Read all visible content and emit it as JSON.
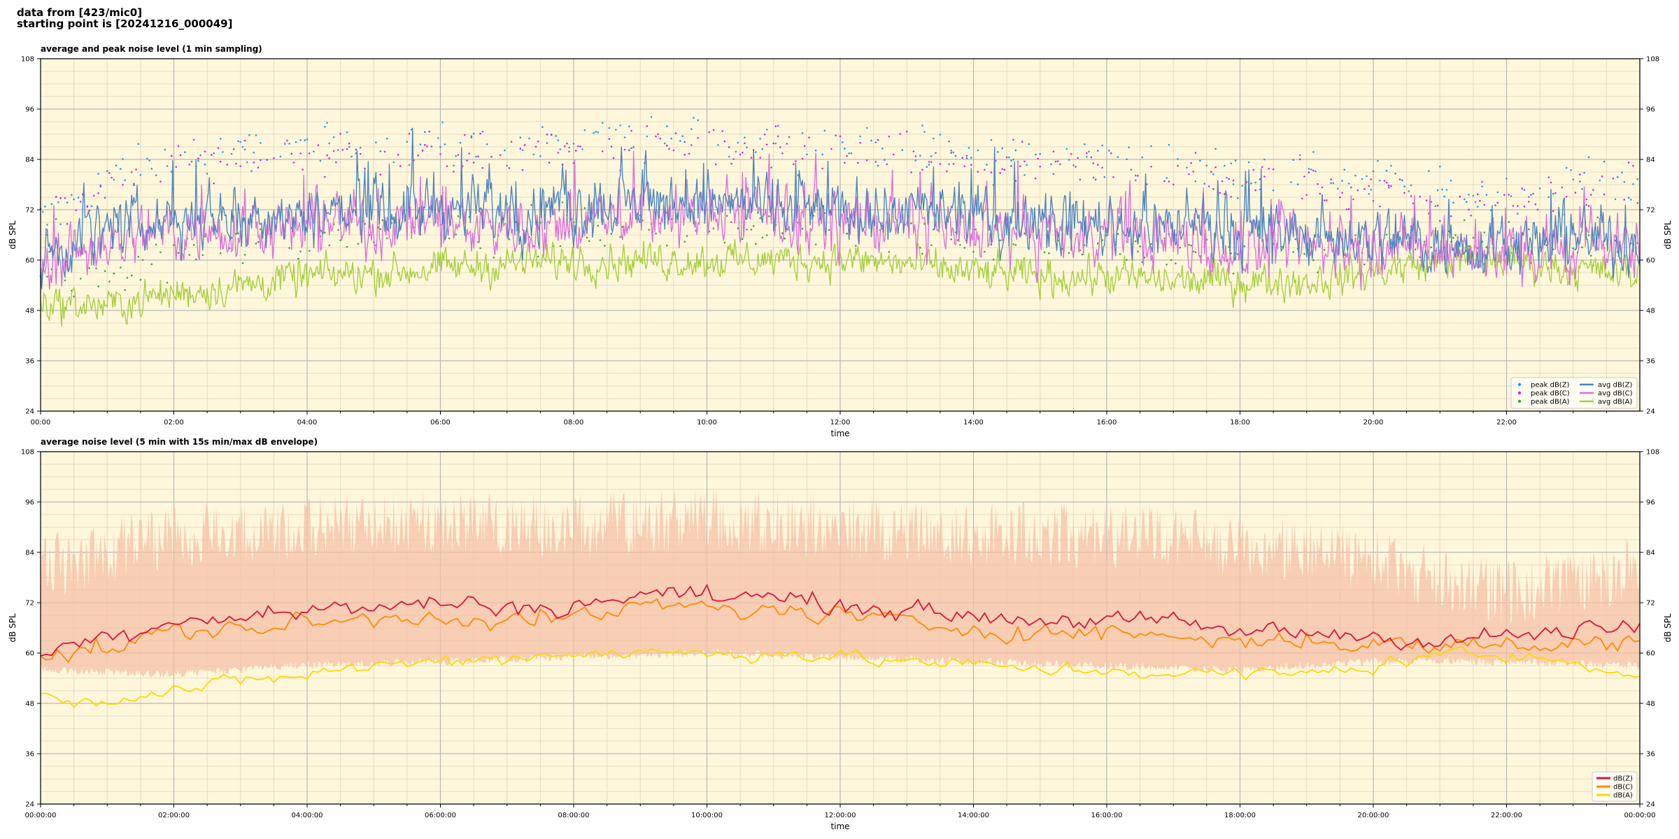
{
  "header": {
    "line1": "data from [423/mic0]",
    "line2": "starting point is [20241216_000049]"
  },
  "colors": {
    "plot_bg": "#fff7dc",
    "grid_major": "#b8b8b8",
    "grid_minor": "#e6dcc0",
    "peak_z": "#1f9fe0",
    "peak_c": "#e020e0",
    "peak_a": "#40a040",
    "avg_z": "#4f86c0",
    "avg_c": "#dd70dd",
    "avg_a": "#a6d040",
    "line_z": "#dc143c",
    "line_c": "#ff8c00",
    "line_a": "#ffd700",
    "envelope": "#f5c0a8"
  },
  "chart_data": [
    {
      "type": "line",
      "title": "average and peak noise level (1 min sampling)",
      "xlabel": "time",
      "ylabel": "dB SPL",
      "ylim": [
        24,
        108
      ],
      "yticks": [
        "24",
        "36",
        "48",
        "60",
        "72",
        "84",
        "96",
        "108"
      ],
      "xlim_hours": [
        0,
        24
      ],
      "xticks": [
        "00:00",
        "02:00",
        "04:00",
        "06:00",
        "08:00",
        "10:00",
        "12:00",
        "14:00",
        "16:00",
        "18:00",
        "20:00",
        "22:00"
      ],
      "grid": true,
      "legend": "bottom-right",
      "legend_entries": [
        "peak dB(Z)",
        "peak dB(C)",
        "peak dB(A)",
        "avg dB(Z)",
        "avg dB(C)",
        "avg dB(A)"
      ],
      "series": [
        {
          "name": "avg dB(Z)",
          "kind": "line",
          "x": [
            "00:00",
            "01:00",
            "02:00",
            "03:00",
            "04:00",
            "05:00",
            "06:00",
            "07:00",
            "08:00",
            "09:00",
            "10:00",
            "11:00",
            "12:00",
            "13:00",
            "14:00",
            "15:00",
            "16:00",
            "17:00",
            "18:00",
            "19:00",
            "20:00",
            "21:00",
            "22:00",
            "23:00",
            "24:00"
          ],
          "y": [
            62,
            67,
            70,
            71,
            71,
            72,
            72,
            71,
            72,
            74,
            74,
            73,
            72,
            71,
            70,
            69,
            69,
            68,
            66,
            66,
            65,
            64,
            64,
            65,
            65
          ]
        },
        {
          "name": "avg dB(C)",
          "kind": "line",
          "x": [
            "00:00",
            "01:00",
            "02:00",
            "03:00",
            "04:00",
            "05:00",
            "06:00",
            "07:00",
            "08:00",
            "09:00",
            "10:00",
            "11:00",
            "12:00",
            "13:00",
            "14:00",
            "15:00",
            "16:00",
            "17:00",
            "18:00",
            "19:00",
            "20:00",
            "21:00",
            "22:00",
            "23:00",
            "24:00"
          ],
          "y": [
            60,
            64,
            67,
            68,
            68,
            69,
            69,
            68,
            69,
            71,
            71,
            70,
            69,
            68,
            67,
            66,
            66,
            65,
            63,
            63,
            63,
            62,
            62,
            62,
            63
          ]
        },
        {
          "name": "avg dB(A)",
          "kind": "line",
          "x": [
            "00:00",
            "01:00",
            "02:00",
            "03:00",
            "04:00",
            "05:00",
            "06:00",
            "07:00",
            "08:00",
            "09:00",
            "10:00",
            "11:00",
            "12:00",
            "13:00",
            "14:00",
            "15:00",
            "16:00",
            "17:00",
            "18:00",
            "19:00",
            "20:00",
            "21:00",
            "22:00",
            "23:00",
            "24:00"
          ],
          "y": [
            50,
            49,
            52,
            54,
            56,
            57,
            58,
            59,
            60,
            60,
            60,
            60,
            60,
            59,
            57,
            56,
            56,
            55,
            55,
            55,
            57,
            60,
            60,
            58,
            56
          ]
        },
        {
          "name": "peak dB(Z)",
          "kind": "scatter",
          "x": [
            "00:00",
            "01:00",
            "02:00",
            "03:00",
            "04:00",
            "05:00",
            "06:00",
            "07:00",
            "08:00",
            "09:00",
            "10:00",
            "11:00",
            "12:00",
            "13:00",
            "14:00",
            "15:00",
            "16:00",
            "17:00",
            "18:00",
            "19:00",
            "20:00",
            "21:00",
            "22:00",
            "23:00",
            "24:00"
          ],
          "y": [
            70,
            80,
            84,
            86,
            87,
            88,
            88,
            87,
            88,
            89,
            89,
            88,
            87,
            86,
            85,
            84,
            84,
            83,
            81,
            81,
            79,
            76,
            76,
            78,
            80
          ]
        },
        {
          "name": "peak dB(C)",
          "kind": "scatter",
          "x": [
            "00:00",
            "01:00",
            "02:00",
            "03:00",
            "04:00",
            "05:00",
            "06:00",
            "07:00",
            "08:00",
            "09:00",
            "10:00",
            "11:00",
            "12:00",
            "13:00",
            "14:00",
            "15:00",
            "16:00",
            "17:00",
            "18:00",
            "19:00",
            "20:00",
            "21:00",
            "22:00",
            "23:00",
            "24:00"
          ],
          "y": [
            68,
            78,
            82,
            84,
            85,
            86,
            86,
            85,
            86,
            87,
            87,
            86,
            85,
            84,
            83,
            82,
            82,
            81,
            79,
            79,
            77,
            74,
            74,
            76,
            78
          ]
        },
        {
          "name": "peak dB(A)",
          "kind": "scatter",
          "x": [
            "00:00",
            "01:00",
            "02:00",
            "03:00",
            "04:00",
            "05:00",
            "06:00",
            "07:00",
            "08:00",
            "09:00",
            "10:00",
            "11:00",
            "12:00",
            "13:00",
            "14:00",
            "15:00",
            "16:00",
            "17:00",
            "18:00",
            "19:00",
            "20:00",
            "21:00",
            "22:00",
            "23:00",
            "24:00"
          ],
          "y": [
            56,
            58,
            62,
            64,
            66,
            67,
            67,
            67,
            68,
            68,
            68,
            68,
            67,
            66,
            64,
            63,
            63,
            62,
            62,
            62,
            63,
            64,
            64,
            63,
            62
          ]
        }
      ]
    },
    {
      "type": "line",
      "title": "average noise level (5 min with 15s min/max dB envelope)",
      "xlabel": "time",
      "ylabel": "dB SPL",
      "ylim": [
        24,
        108
      ],
      "yticks": [
        "24",
        "36",
        "48",
        "60",
        "72",
        "84",
        "96",
        "108"
      ],
      "xlim_hours": [
        0,
        24
      ],
      "xticks": [
        "00:00:00",
        "02:00:00",
        "04:00:00",
        "06:00:00",
        "08:00:00",
        "10:00:00",
        "12:00:00",
        "14:00:00",
        "16:00:00",
        "18:00:00",
        "20:00:00",
        "22:00:00",
        "00:00:00"
      ],
      "grid": true,
      "legend": "bottom-right",
      "legend_entries": [
        "dB(Z)",
        "dB(C)",
        "dB(A)"
      ],
      "envelope": {
        "x": [
          "00:00",
          "02:00",
          "04:00",
          "06:00",
          "08:00",
          "10:00",
          "12:00",
          "14:00",
          "16:00",
          "18:00",
          "20:00",
          "22:00",
          "24:00"
        ],
        "low": [
          57,
          56,
          58,
          59,
          60,
          61,
          60,
          59,
          58,
          57,
          59,
          59,
          58
        ],
        "high": [
          82,
          90,
          92,
          93,
          92,
          94,
          92,
          90,
          90,
          88,
          84,
          76,
          82
        ]
      },
      "series": [
        {
          "name": "dB(Z)",
          "x": [
            "00:00",
            "01:00",
            "02:00",
            "03:00",
            "04:00",
            "05:00",
            "06:00",
            "07:00",
            "08:00",
            "09:00",
            "10:00",
            "11:00",
            "12:00",
            "13:00",
            "14:00",
            "15:00",
            "16:00",
            "17:00",
            "18:00",
            "19:00",
            "20:00",
            "21:00",
            "22:00",
            "23:00",
            "24:00"
          ],
          "y": [
            60,
            64,
            68,
            69,
            70,
            71,
            72,
            71,
            71,
            74,
            74,
            73,
            72,
            70,
            69,
            68,
            68,
            67,
            65,
            65,
            64,
            63,
            64,
            65,
            66
          ]
        },
        {
          "name": "dB(C)",
          "x": [
            "00:00",
            "01:00",
            "02:00",
            "03:00",
            "04:00",
            "05:00",
            "06:00",
            "07:00",
            "08:00",
            "09:00",
            "10:00",
            "11:00",
            "12:00",
            "13:00",
            "14:00",
            "15:00",
            "16:00",
            "17:00",
            "18:00",
            "19:00",
            "20:00",
            "21:00",
            "22:00",
            "23:00",
            "24:00"
          ],
          "y": [
            59,
            61,
            65,
            66,
            67,
            68,
            69,
            68,
            68,
            71,
            71,
            70,
            69,
            67,
            66,
            65,
            65,
            64,
            63,
            63,
            62,
            62,
            62,
            62,
            63
          ]
        },
        {
          "name": "dB(A)",
          "x": [
            "00:00",
            "01:00",
            "02:00",
            "03:00",
            "04:00",
            "05:00",
            "06:00",
            "07:00",
            "08:00",
            "09:00",
            "10:00",
            "11:00",
            "12:00",
            "13:00",
            "14:00",
            "15:00",
            "16:00",
            "17:00",
            "18:00",
            "19:00",
            "20:00",
            "21:00",
            "22:00",
            "23:00",
            "24:00"
          ],
          "y": [
            50,
            49,
            51,
            53,
            55,
            57,
            58,
            59,
            60,
            60,
            60,
            60,
            59,
            58,
            57,
            56,
            56,
            55,
            55,
            55,
            57,
            60,
            59,
            58,
            55
          ]
        }
      ]
    }
  ]
}
